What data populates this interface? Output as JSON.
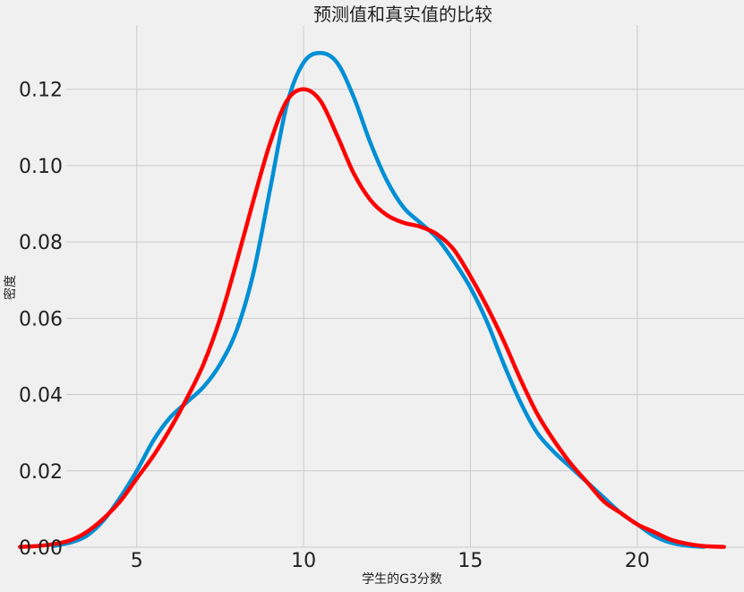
{
  "chart_data": {
    "type": "line",
    "title": "预测值和真实值的比较",
    "xlabel": "学生的G3分数",
    "ylabel": "密度",
    "xlim": [
      0.9,
      23.2
    ],
    "ylim": [
      0,
      0.134
    ],
    "xticks": [
      5,
      10,
      15,
      20
    ],
    "yticks": [
      0.0,
      0.02,
      0.04,
      0.06,
      0.08,
      0.1,
      0.12
    ],
    "ytick_labels": [
      "0.00",
      "0.02",
      "0.04",
      "0.06",
      "0.08",
      "0.10",
      "0.12"
    ],
    "grid": true,
    "legend": "none",
    "series": [
      {
        "color": "#008fd5",
        "x": [
          2.5,
          3.0,
          3.5,
          4.0,
          4.5,
          5.0,
          5.5,
          6.0,
          6.5,
          7.0,
          7.5,
          8.0,
          8.5,
          9.0,
          9.5,
          10.0,
          10.5,
          11.0,
          11.5,
          12.0,
          12.5,
          13.0,
          13.5,
          14.0,
          14.5,
          15.0,
          15.5,
          16.0,
          16.5,
          17.0,
          17.5,
          18.0,
          18.5,
          19.0,
          19.5,
          20.0,
          20.5,
          21.0,
          21.5,
          22.0
        ],
        "y": [
          0.0003,
          0.0012,
          0.003,
          0.007,
          0.013,
          0.02,
          0.028,
          0.034,
          0.038,
          0.042,
          0.048,
          0.057,
          0.072,
          0.094,
          0.116,
          0.127,
          0.1295,
          0.127,
          0.118,
          0.106,
          0.096,
          0.089,
          0.085,
          0.081,
          0.075,
          0.068,
          0.059,
          0.048,
          0.038,
          0.03,
          0.025,
          0.021,
          0.017,
          0.013,
          0.009,
          0.006,
          0.003,
          0.0012,
          0.0004,
          0.0001
        ]
      },
      {
        "color": "#ff0000",
        "x": [
          1.5,
          2.0,
          2.5,
          3.0,
          3.5,
          4.0,
          4.5,
          5.0,
          5.5,
          6.0,
          6.5,
          7.0,
          7.5,
          8.0,
          8.5,
          9.0,
          9.5,
          10.0,
          10.5,
          11.0,
          11.5,
          12.0,
          12.5,
          13.0,
          13.5,
          14.0,
          14.5,
          15.0,
          15.5,
          16.0,
          16.5,
          17.0,
          17.5,
          18.0,
          18.5,
          19.0,
          19.5,
          20.0,
          20.5,
          21.0,
          21.5,
          22.0,
          22.6
        ],
        "y": [
          0.0001,
          0.0003,
          0.0008,
          0.0018,
          0.004,
          0.0075,
          0.012,
          0.018,
          0.024,
          0.031,
          0.039,
          0.048,
          0.06,
          0.075,
          0.091,
          0.106,
          0.117,
          0.12,
          0.117,
          0.108,
          0.098,
          0.091,
          0.087,
          0.085,
          0.084,
          0.082,
          0.078,
          0.071,
          0.063,
          0.054,
          0.044,
          0.035,
          0.028,
          0.022,
          0.017,
          0.012,
          0.009,
          0.006,
          0.004,
          0.002,
          0.0009,
          0.0003,
          0.0001
        ]
      }
    ]
  }
}
